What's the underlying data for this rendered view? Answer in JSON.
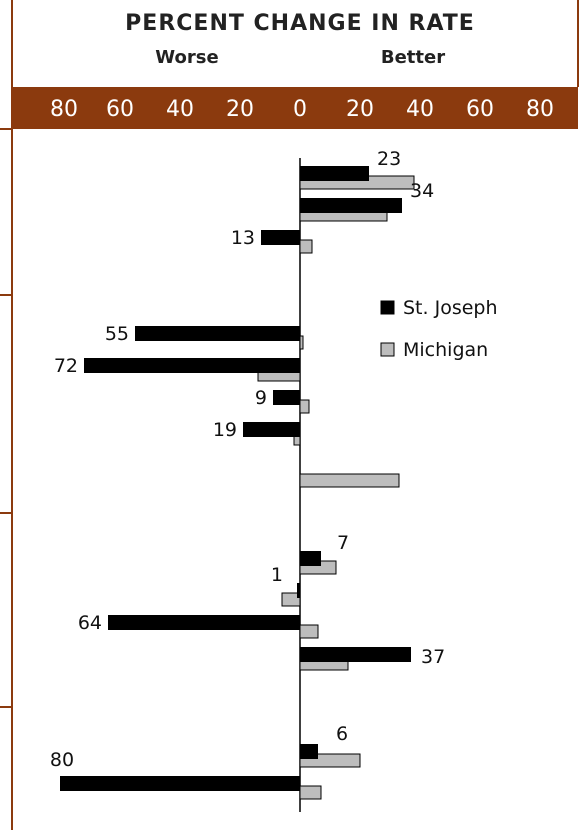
{
  "colors": {
    "band": "#8b3a0e",
    "frame": "#8b3a0e",
    "series_1": "#000000",
    "series_2": "#bdbdbd"
  },
  "chart_data": {
    "type": "bar",
    "orientation": "horizontal",
    "title": "PERCENT CHANGE IN RATE",
    "left_label": "Worse",
    "right_label": "Better",
    "xlim": [
      -80,
      80
    ],
    "tick_labels": [
      "80",
      "60",
      "40",
      "20",
      "0",
      "20",
      "40",
      "60",
      "80"
    ],
    "series": [
      {
        "name": "St. Joseph",
        "color": "#000000",
        "values": [
          23,
          34,
          -13,
          -55,
          -72,
          -9,
          -19,
          null,
          7,
          -1,
          -64,
          37,
          6,
          -80
        ]
      },
      {
        "name": "Michigan",
        "color": "#bdbdbd",
        "values": [
          38,
          29,
          4,
          1,
          -14,
          3,
          -2,
          33,
          12,
          -6,
          6,
          16,
          20,
          7
        ]
      }
    ],
    "data_labels": [
      "23",
      "34",
      "13",
      "55",
      "72",
      "9",
      "19",
      "",
      "7",
      "1",
      "64",
      "37",
      "6",
      "80"
    ],
    "groups": [
      4,
      4,
      4,
      2
    ],
    "legend_position": "right",
    "grid": false
  }
}
